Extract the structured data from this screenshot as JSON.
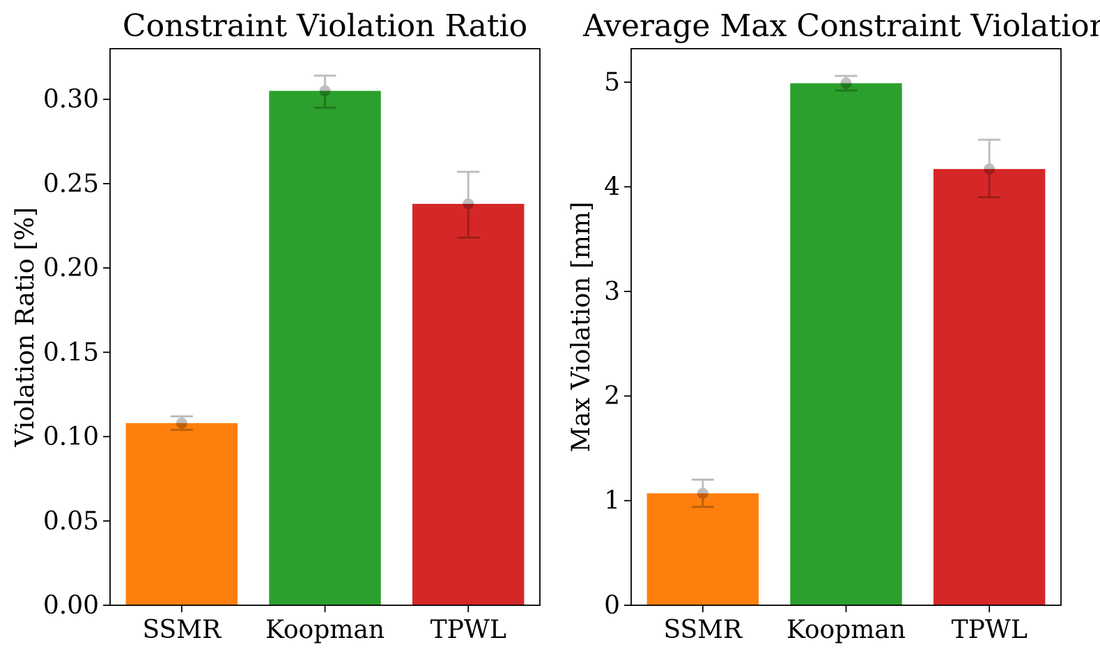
{
  "colors": {
    "SSMR": "#ff7f0e",
    "Koopman": "#2ca02c",
    "TPWL": "#d62728",
    "errorbar": "#000000"
  },
  "chart_data": [
    {
      "type": "bar",
      "title": "Constraint Violation Ratio",
      "xlabel": "",
      "ylabel": "Violation Ratio [%]",
      "categories": [
        "SSMR",
        "Koopman",
        "TPWL"
      ],
      "values": [
        0.108,
        0.305,
        0.238
      ],
      "error_low": [
        0.104,
        0.295,
        0.218
      ],
      "error_high": [
        0.112,
        0.314,
        0.257
      ],
      "ylim": [
        0,
        0.33
      ],
      "yticks": [
        0.0,
        0.05,
        0.1,
        0.15,
        0.2,
        0.25,
        0.3
      ],
      "ytick_labels": [
        "0.00",
        "0.05",
        "0.10",
        "0.15",
        "0.20",
        "0.25",
        "0.30"
      ],
      "grid": false,
      "legend": "none"
    },
    {
      "type": "bar",
      "title": "Average Max Constraint Violation",
      "xlabel": "",
      "ylabel": "Max Violation [mm]",
      "categories": [
        "SSMR",
        "Koopman",
        "TPWL"
      ],
      "values": [
        1.07,
        4.99,
        4.17
      ],
      "error_low": [
        0.94,
        4.92,
        3.9
      ],
      "error_high": [
        1.2,
        5.06,
        4.45
      ],
      "ylim": [
        0,
        5.32
      ],
      "yticks": [
        0,
        1,
        2,
        3,
        4,
        5
      ],
      "ytick_labels": [
        "0",
        "1",
        "2",
        "3",
        "4",
        "5"
      ],
      "grid": false,
      "legend": "none"
    }
  ]
}
